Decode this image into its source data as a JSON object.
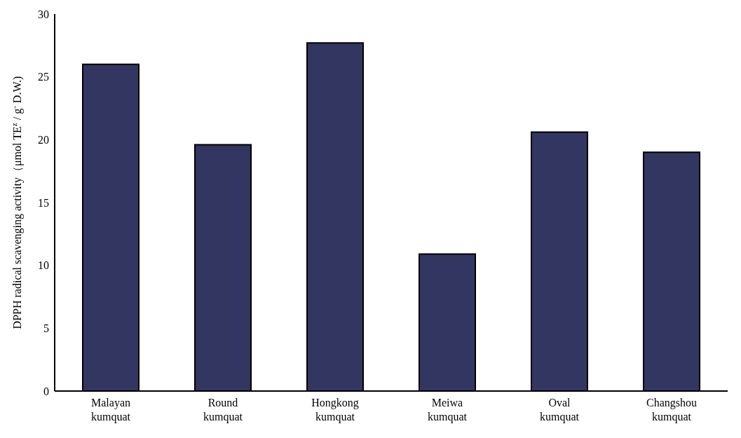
{
  "chart_data": {
    "type": "bar",
    "ylabel": "DPPH radical scavenging activity（μmol TE$^{z}$ / g$^{-}$ D.W.)",
    "categories": [
      "Malayan kumquat",
      "Round kumquat",
      "Hongkong kumquat",
      "Meiwa kumquat",
      "Oval kumquat",
      "Changshou kumquat"
    ],
    "values": [
      26.0,
      19.6,
      27.7,
      10.9,
      20.6,
      19.0
    ],
    "color": "#333660",
    "ylim": [
      0,
      30
    ],
    "yticks": [
      0,
      5,
      10,
      15,
      20,
      25,
      30
    ],
    "grid": false,
    "legend": false
  }
}
